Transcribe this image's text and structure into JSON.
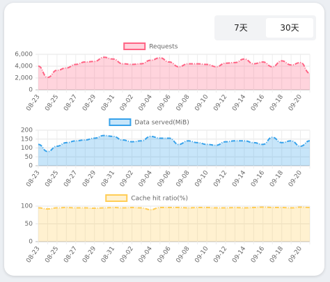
{
  "tabs": [
    "7天",
    "30天"
  ],
  "chart_data": [
    {
      "type": "line",
      "categories": [
        "08-23",
        null,
        "08-25",
        null,
        "08-27",
        null,
        "08-29",
        null,
        "08-31",
        null,
        "09-02",
        null,
        "09-04",
        null,
        "09-06",
        null,
        "09-08",
        null,
        "09-10",
        null,
        "09-12",
        null,
        "09-14",
        null,
        "09-16",
        null,
        "09-18",
        null,
        "09-20",
        null
      ],
      "series": [
        {
          "name": "Requests",
          "color": "#ff6384",
          "values": [
            4000,
            2100,
            3300,
            3700,
            4300,
            4700,
            4800,
            5500,
            5200,
            4400,
            4300,
            4400,
            5000,
            5400,
            4700,
            3900,
            4400,
            4400,
            4300,
            3900,
            4500,
            4600,
            5200,
            4400,
            4700,
            3900,
            4900,
            4200,
            4600,
            2800
          ]
        }
      ],
      "ylim": [
        0,
        6000
      ],
      "yticks": [
        0,
        {
          "value": 2000,
          "label": "2,000"
        },
        {
          "value": 4000,
          "label": "4,000"
        },
        {
          "value": 6000,
          "label": "6,000"
        }
      ],
      "grid": true
    },
    {
      "type": "line",
      "categories": [
        "08-23",
        null,
        "08-25",
        null,
        "08-27",
        null,
        "08-29",
        null,
        "08-31",
        null,
        "09-02",
        null,
        "09-04",
        null,
        "09-06",
        null,
        "09-08",
        null,
        "09-10",
        null,
        "09-12",
        null,
        "09-14",
        null,
        "09-16",
        null,
        "09-18",
        null,
        "09-20",
        null
      ],
      "series": [
        {
          "name": "Data served(MiB)",
          "color": "#36a2eb",
          "values": [
            120,
            80,
            110,
            130,
            140,
            145,
            155,
            170,
            165,
            145,
            135,
            140,
            165,
            155,
            155,
            120,
            140,
            130,
            120,
            115,
            135,
            140,
            140,
            130,
            120,
            160,
            130,
            140,
            110,
            140
          ]
        }
      ],
      "ylim": [
        0,
        200
      ],
      "yticks": [
        0,
        50,
        100,
        150,
        200
      ],
      "grid": true
    },
    {
      "type": "line",
      "categories": [
        "08-23",
        null,
        "08-25",
        null,
        "08-27",
        null,
        "08-29",
        null,
        "08-31",
        null,
        "09-02",
        null,
        "09-04",
        null,
        "09-06",
        null,
        "09-08",
        null,
        "09-10",
        null,
        "09-12",
        null,
        "09-14",
        null,
        "09-16",
        null,
        "09-18",
        null,
        "09-20",
        null
      ],
      "series": [
        {
          "name": "Cache hit ratio(%)",
          "color": "#ffcd56",
          "values": [
            95,
            92,
            95,
            96,
            95,
            95,
            94,
            95,
            96,
            95,
            96,
            95,
            90,
            96,
            96,
            96,
            95,
            96,
            96,
            95,
            95,
            96,
            95,
            96,
            97,
            96,
            96,
            95,
            97,
            96
          ]
        }
      ],
      "ylim": [
        0,
        100
      ],
      "yticks": [
        0,
        50,
        100
      ],
      "grid": true
    }
  ]
}
